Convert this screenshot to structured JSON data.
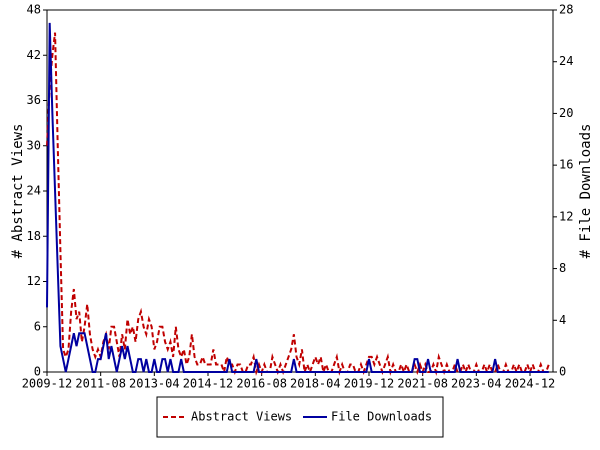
{
  "chart_data": {
    "type": "line",
    "x": [
      "2009-12",
      "2010-01",
      "2010-02",
      "2010-03",
      "2010-04",
      "2010-05",
      "2010-06",
      "2010-07",
      "2010-08",
      "2010-09",
      "2010-10",
      "2010-11",
      "2010-12",
      "2011-01",
      "2011-02",
      "2011-03",
      "2011-04",
      "2011-05",
      "2011-06",
      "2011-07",
      "2011-08",
      "2011-09",
      "2011-10",
      "2011-11",
      "2011-12",
      "2012-01",
      "2012-02",
      "2012-03",
      "2012-04",
      "2012-05",
      "2012-06",
      "2012-07",
      "2012-08",
      "2012-09",
      "2012-10",
      "2012-11",
      "2012-12",
      "2013-01",
      "2013-02",
      "2013-03",
      "2013-04",
      "2013-05",
      "2013-06",
      "2013-07",
      "2013-08",
      "2013-09",
      "2013-10",
      "2013-11",
      "2013-12",
      "2014-01",
      "2014-02",
      "2014-03",
      "2014-04",
      "2014-05",
      "2014-06",
      "2014-07",
      "2014-08",
      "2014-09",
      "2014-10",
      "2014-11",
      "2014-12",
      "2015-01",
      "2015-02",
      "2015-03",
      "2015-04",
      "2015-05",
      "2015-06",
      "2015-07",
      "2015-08",
      "2015-09",
      "2015-10",
      "2015-11",
      "2015-12",
      "2016-01",
      "2016-02",
      "2016-03",
      "2016-04",
      "2016-05",
      "2016-06",
      "2016-07",
      "2016-08",
      "2016-09",
      "2016-10",
      "2016-11",
      "2016-12",
      "2017-01",
      "2017-02",
      "2017-03",
      "2017-04",
      "2017-05",
      "2017-06",
      "2017-07",
      "2017-08",
      "2017-09",
      "2017-10",
      "2017-11",
      "2017-12",
      "2018-01",
      "2018-02",
      "2018-03",
      "2018-04",
      "2018-05",
      "2018-06",
      "2018-07",
      "2018-08",
      "2018-09",
      "2018-10",
      "2018-11",
      "2018-12",
      "2019-01",
      "2019-02",
      "2019-03",
      "2019-04",
      "2019-05",
      "2019-06",
      "2019-07",
      "2019-08",
      "2019-09",
      "2019-10",
      "2019-11",
      "2019-12",
      "2020-01",
      "2020-02",
      "2020-03",
      "2020-04",
      "2020-05",
      "2020-06",
      "2020-07",
      "2020-08",
      "2020-09",
      "2020-10",
      "2020-11",
      "2020-12",
      "2021-01",
      "2021-02",
      "2021-03",
      "2021-04",
      "2021-05",
      "2021-06",
      "2021-07",
      "2021-08",
      "2021-09",
      "2021-10",
      "2021-11",
      "2021-12",
      "2022-01",
      "2022-02",
      "2022-03",
      "2022-04",
      "2022-05",
      "2022-06",
      "2022-07",
      "2022-08",
      "2022-09",
      "2022-10",
      "2022-11",
      "2022-12",
      "2023-01",
      "2023-02",
      "2023-03",
      "2023-04",
      "2023-05",
      "2023-06",
      "2023-07",
      "2023-08",
      "2023-09",
      "2023-10",
      "2023-11",
      "2023-12",
      "2024-01",
      "2024-02",
      "2024-03",
      "2024-04",
      "2024-05",
      "2024-06",
      "2024-07",
      "2024-08",
      "2024-09",
      "2024-10",
      "2024-11",
      "2024-12",
      "2025-01",
      "2025-02",
      "2025-03",
      "2025-04",
      "2025-05",
      "2025-06",
      "2025-07"
    ],
    "xticks": [
      "2009-12",
      "2011-08",
      "2013-04",
      "2014-12",
      "2016-08",
      "2018-04",
      "2019-12",
      "2021-08",
      "2023-04",
      "2024-12"
    ],
    "ylabel": "# Abstract Views",
    "y2label": "# File Downloads",
    "ylim": [
      0,
      48
    ],
    "yticks": [
      0,
      6,
      12,
      18,
      24,
      30,
      36,
      42,
      48
    ],
    "y2lim": [
      0,
      28
    ],
    "y2ticks": [
      0,
      4,
      8,
      12,
      16,
      20,
      24,
      28
    ],
    "grid": false,
    "legend": "bottom",
    "series": [
      {
        "name": "Abstract Views",
        "color": "#c00000",
        "dash": true,
        "values": [
          30,
          38,
          42,
          45,
          30,
          16,
          3,
          2,
          3,
          8,
          11,
          7,
          8,
          4,
          6,
          9,
          5,
          3,
          2,
          3,
          2,
          4,
          5,
          3,
          6,
          6,
          4,
          2,
          5,
          3,
          7,
          5,
          6,
          4,
          7,
          8,
          6,
          5,
          7,
          6,
          3,
          4,
          6,
          6,
          4,
          3,
          4,
          2,
          6,
          3,
          2,
          3,
          1,
          2,
          5,
          2,
          1,
          1,
          2,
          1,
          1,
          1,
          3,
          1,
          1,
          1,
          0,
          2,
          1,
          1,
          0,
          1,
          1,
          0,
          0,
          1,
          1,
          2,
          0,
          1,
          0,
          1,
          0,
          0,
          2,
          1,
          0,
          1,
          0,
          1,
          2,
          3,
          5,
          2,
          1,
          3,
          0,
          1,
          0,
          1,
          2,
          1,
          2,
          0,
          1,
          0,
          0,
          1,
          2,
          0,
          1,
          0,
          0,
          1,
          1,
          0,
          0,
          1,
          0,
          1,
          2,
          2,
          1,
          2,
          1,
          0,
          1,
          2,
          0,
          1,
          0,
          0,
          1,
          0,
          1,
          0,
          0,
          1,
          0,
          1,
          0,
          1,
          0,
          0,
          1,
          0,
          2,
          1,
          0,
          1,
          0,
          0,
          1,
          0,
          0,
          1,
          0,
          1,
          0,
          0,
          1,
          0,
          0,
          1,
          0,
          1,
          0,
          0,
          1,
          0,
          0,
          1,
          0,
          0,
          1,
          0,
          1,
          0,
          0,
          1,
          0,
          1,
          0,
          0,
          1,
          0,
          0,
          1
        ]
      },
      {
        "name": "File Downloads",
        "color": "#0000a0",
        "dash": false,
        "axis": "y2",
        "values": [
          5,
          27,
          20,
          14,
          8,
          2,
          1,
          0,
          1,
          2,
          3,
          2,
          3,
          3,
          3,
          2,
          1,
          0,
          0,
          1,
          1,
          2,
          3,
          1,
          2,
          1,
          0,
          1,
          2,
          1,
          2,
          1,
          0,
          0,
          1,
          1,
          0,
          1,
          0,
          0,
          1,
          0,
          0,
          1,
          1,
          0,
          1,
          0,
          0,
          0,
          1,
          0,
          0,
          0,
          0,
          0,
          0,
          0,
          0,
          0,
          0,
          0,
          0,
          0,
          0,
          0,
          0,
          0,
          1,
          0,
          0,
          0,
          0,
          0,
          0,
          0,
          0,
          0,
          1,
          0,
          0,
          0,
          0,
          0,
          0,
          0,
          0,
          0,
          0,
          0,
          0,
          0,
          1,
          0,
          0,
          0,
          0,
          0,
          0,
          0,
          0,
          0,
          0,
          0,
          0,
          0,
          0,
          0,
          0,
          0,
          0,
          0,
          0,
          0,
          0,
          0,
          0,
          0,
          0,
          0,
          1,
          0,
          0,
          0,
          0,
          0,
          0,
          0,
          0,
          0,
          0,
          0,
          0,
          0,
          0,
          0,
          0,
          1,
          1,
          0,
          0,
          0,
          1,
          0,
          0,
          0,
          0,
          0,
          0,
          0,
          0,
          0,
          0,
          1,
          0,
          0,
          0,
          0,
          0,
          0,
          0,
          0,
          0,
          0,
          0,
          0,
          0,
          1,
          0,
          0,
          0,
          0,
          0,
          0,
          0,
          0,
          0,
          0,
          0,
          0,
          0,
          0,
          0,
          0,
          0,
          0,
          0,
          0
        ]
      }
    ]
  }
}
